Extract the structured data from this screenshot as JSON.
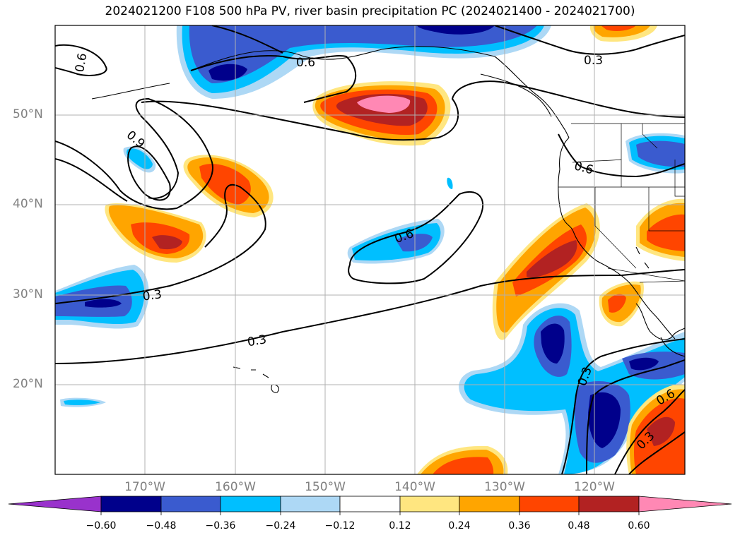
{
  "title": "2024021200 F108 500 hPa PV, river basin precipitation PC (2024021400 - 2024021700)",
  "map": {
    "projection": "PlateCarree",
    "extent_lon": [
      -180,
      -110
    ],
    "extent_lat": [
      10,
      60
    ],
    "lat_ticks": [
      "50°N",
      "40°N",
      "30°N",
      "20°N"
    ],
    "lon_ticks": [
      "170°W",
      "160°W",
      "150°W",
      "140°W",
      "130°W",
      "120°W"
    ],
    "gridlines": true,
    "coastlines": true,
    "borders": true
  },
  "contour_labels": [
    "0.6",
    "0.3",
    "0.9",
    "0.6",
    "0.3",
    "0.3",
    "0.6",
    "0.6",
    "0.3",
    "0.6",
    "0.3"
  ],
  "colorbar": {
    "extend": "both",
    "ticks": [
      "−0.60",
      "−0.48",
      "−0.36",
      "−0.24",
      "−0.12",
      "0.12",
      "0.24",
      "0.36",
      "0.48",
      "0.60"
    ],
    "colors": [
      "#9932cc",
      "#00008b",
      "#3a5bcf",
      "#00bfff",
      "#add8f5",
      "#ffffff",
      "#ffe680",
      "#ffa500",
      "#ff4500",
      "#b22222",
      "#ff88b4"
    ]
  }
}
